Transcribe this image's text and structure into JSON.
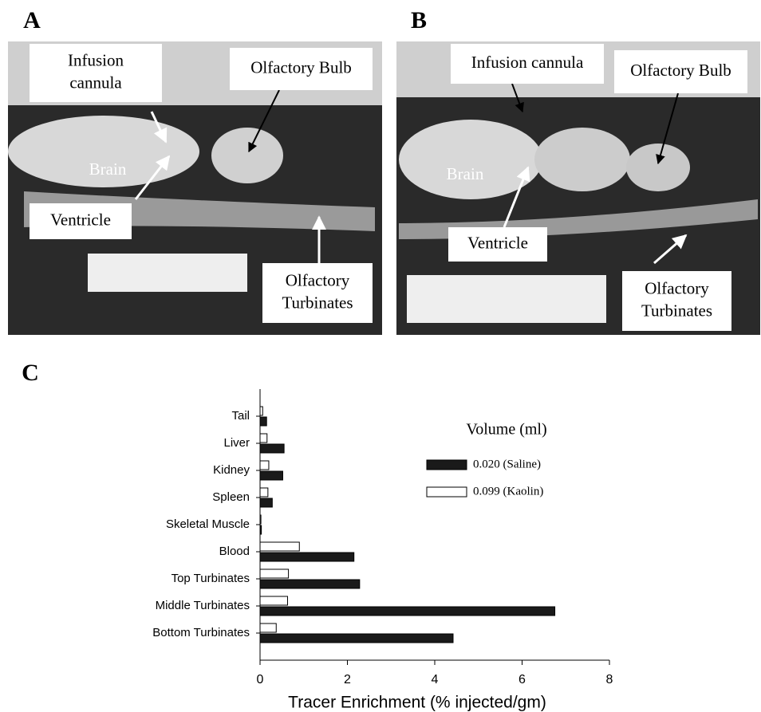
{
  "panels": [
    {
      "letter": "A",
      "labels": [
        {
          "lines": [
            "Infusion",
            "cannula"
          ]
        },
        {
          "lines": [
            "Olfactory Bulb"
          ]
        },
        {
          "lines": [
            "Brain"
          ]
        },
        {
          "lines": [
            "Ventricle"
          ]
        },
        {
          "lines": [
            "Olfactory",
            "Turbinates"
          ]
        }
      ]
    },
    {
      "letter": "B",
      "labels": [
        {
          "lines": [
            "Infusion cannula"
          ]
        },
        {
          "lines": [
            "Olfactory Bulb"
          ]
        },
        {
          "lines": [
            "Brain"
          ]
        },
        {
          "lines": [
            "Ventricle"
          ]
        },
        {
          "lines": [
            "Olfactory",
            "Turbinates"
          ]
        }
      ]
    }
  ],
  "chart_data": {
    "type": "barh",
    "panel_letter": "C",
    "categories": [
      "Tail",
      "Liver",
      "Kidney",
      "Spleen",
      "Skeletal Muscle",
      "Blood",
      "Top Turbinates",
      "Middle Turbinates",
      "Bottom Turbinates"
    ],
    "legend_title": "Volume (ml)",
    "series": [
      {
        "name": "0.020 (Saline)",
        "color": "#1a1a1a",
        "values": [
          0.15,
          0.55,
          0.52,
          0.28,
          0.03,
          2.15,
          2.28,
          6.75,
          4.42
        ]
      },
      {
        "name": "0.099 (Kaolin)",
        "color": "#ffffff",
        "values": [
          0.06,
          0.16,
          0.2,
          0.18,
          0.02,
          0.9,
          0.65,
          0.63,
          0.37
        ]
      }
    ],
    "x_label": "Tracer Enrichment (% injected/gm)",
    "xlim": [
      0,
      8
    ],
    "xticks": [
      0,
      2,
      4,
      6,
      8
    ]
  }
}
